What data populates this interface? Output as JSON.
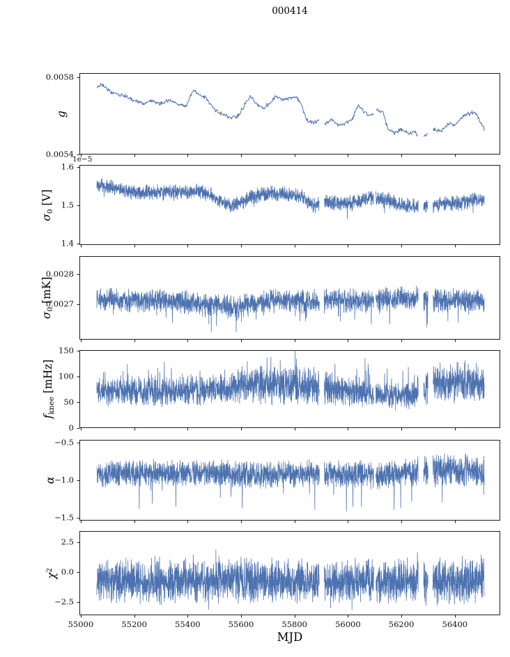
{
  "chart_data": {
    "type": "line",
    "title": "000414",
    "xlabel": "MJD",
    "xlim": [
      54995,
      56570
    ],
    "xticks": {
      "values": [
        55000,
        55200,
        55400,
        55600,
        55800,
        56000,
        56200,
        56400
      ],
      "labels": [
        "55000",
        "55200",
        "55400",
        "55600",
        "55800",
        "56000",
        "56200",
        "56400"
      ]
    },
    "x_data_range": [
      55060,
      56510
    ],
    "gaps": [
      [
        55893,
        55911
      ],
      [
        56097,
        56104
      ],
      [
        56263,
        56283
      ],
      [
        56300,
        56318
      ]
    ],
    "line_color": "#4c72b0",
    "axis_color": "#1a1a1a",
    "legend": "none",
    "grid": false,
    "panels": [
      {
        "id": "g",
        "ylabel": [
          {
            "t": "g",
            "style": "italic"
          }
        ],
        "ylim": [
          0.0054,
          0.00582
        ],
        "yticks": {
          "values": [
            0.0054,
            0.0058
          ],
          "labels": [
            "0.0054",
            "0.0058"
          ]
        },
        "trend": [
          [
            55060,
            0.00575
          ],
          [
            55085,
            0.00576
          ],
          [
            55110,
            0.00572
          ],
          [
            55140,
            0.00571
          ],
          [
            55170,
            0.0057
          ],
          [
            55200,
            0.00568
          ],
          [
            55235,
            0.00566
          ],
          [
            55265,
            0.00568
          ],
          [
            55295,
            0.00566
          ],
          [
            55330,
            0.00568
          ],
          [
            55365,
            0.00566
          ],
          [
            55395,
            0.00565
          ],
          [
            55420,
            0.00573
          ],
          [
            55445,
            0.00571
          ],
          [
            55470,
            0.00569
          ],
          [
            55500,
            0.00563
          ],
          [
            55530,
            0.00561
          ],
          [
            55560,
            0.00559
          ],
          [
            55590,
            0.0056
          ],
          [
            55615,
            0.00566
          ],
          [
            55635,
            0.0057
          ],
          [
            55660,
            0.00566
          ],
          [
            55685,
            0.00564
          ],
          [
            55710,
            0.00567
          ],
          [
            55730,
            0.0057
          ],
          [
            55755,
            0.00568
          ],
          [
            55780,
            0.00569
          ],
          [
            55805,
            0.0057
          ],
          [
            55825,
            0.00566
          ],
          [
            55845,
            0.00558
          ],
          [
            55870,
            0.00556
          ],
          [
            55895,
            0.00558
          ],
          [
            55915,
            0.00556
          ],
          [
            55940,
            0.00558
          ],
          [
            55965,
            0.00555
          ],
          [
            55990,
            0.00556
          ],
          [
            56015,
            0.00558
          ],
          [
            56040,
            0.00566
          ],
          [
            56060,
            0.00562
          ],
          [
            56085,
            0.0056
          ],
          [
            56110,
            0.00563
          ],
          [
            56130,
            0.00562
          ],
          [
            56150,
            0.00553
          ],
          [
            56175,
            0.00551
          ],
          [
            56200,
            0.00553
          ],
          [
            56225,
            0.00551
          ],
          [
            56250,
            0.00552
          ],
          [
            56275,
            0.00548
          ],
          [
            56300,
            0.00551
          ],
          [
            56325,
            0.00553
          ],
          [
            56350,
            0.00552
          ],
          [
            56375,
            0.00556
          ],
          [
            56400,
            0.00555
          ],
          [
            56425,
            0.00559
          ],
          [
            56450,
            0.00561
          ],
          [
            56475,
            0.00562
          ],
          [
            56495,
            0.00557
          ],
          [
            56510,
            0.00553
          ]
        ],
        "noise": {
          "seed": 11,
          "amp": 1.2e-05,
          "spike_p": 0,
          "spike_amp": [
            0,
            0
          ],
          "spike_dir": 0
        },
        "clip": [
          0.00542,
          0.00581
        ],
        "n_points": 700,
        "line_width": 1.0
      },
      {
        "id": "sigma0_V",
        "ylabel": [
          {
            "t": "σ",
            "style": "italic"
          },
          {
            "t": "0",
            "style": "sub"
          },
          {
            "t": " [V]",
            "style": "normal"
          }
        ],
        "offset_text": "1e−5",
        "unit_scale": "1e-5",
        "ylim": [
          1.396,
          1.605
        ],
        "yticks": {
          "values": [
            1.4,
            1.5,
            1.6
          ],
          "labels": [
            "1.4",
            "1.5",
            "1.6"
          ]
        },
        "trend": [
          [
            55060,
            1.55
          ],
          [
            55110,
            1.548
          ],
          [
            55160,
            1.54
          ],
          [
            55210,
            1.532
          ],
          [
            55260,
            1.534
          ],
          [
            55310,
            1.532
          ],
          [
            55360,
            1.534
          ],
          [
            55410,
            1.532
          ],
          [
            55450,
            1.536
          ],
          [
            55490,
            1.525
          ],
          [
            55530,
            1.507
          ],
          [
            55565,
            1.5
          ],
          [
            55600,
            1.508
          ],
          [
            55640,
            1.522
          ],
          [
            55690,
            1.53
          ],
          [
            55740,
            1.532
          ],
          [
            55790,
            1.528
          ],
          [
            55830,
            1.522
          ],
          [
            55865,
            1.503
          ],
          [
            55885,
            1.498
          ],
          [
            55905,
            1.512
          ],
          [
            55945,
            1.506
          ],
          [
            55985,
            1.505
          ],
          [
            56025,
            1.507
          ],
          [
            56065,
            1.516
          ],
          [
            56105,
            1.52
          ],
          [
            56145,
            1.514
          ],
          [
            56185,
            1.502
          ],
          [
            56225,
            1.498
          ],
          [
            56265,
            1.5
          ],
          [
            56305,
            1.5
          ],
          [
            56345,
            1.501
          ],
          [
            56385,
            1.503
          ],
          [
            56425,
            1.506
          ],
          [
            56465,
            1.512
          ],
          [
            56510,
            1.512
          ]
        ],
        "noise": {
          "seed": 22,
          "amp": 0.022,
          "spike_p": 0.01,
          "spike_amp": [
            0.01,
            0.03
          ],
          "spike_dir": -1
        },
        "clip": [
          1.43,
          1.59
        ],
        "n_points": 2400,
        "line_width": 0.8
      },
      {
        "id": "sigma0_mK",
        "ylabel": [
          {
            "t": "σ",
            "style": "italic"
          },
          {
            "t": "0",
            "style": "sub"
          },
          {
            "t": " [mK]",
            "style": "normal"
          }
        ],
        "ylim": [
          0.00258,
          0.00286
        ],
        "yticks": {
          "values": [
            0.0027,
            0.0028
          ],
          "labels": [
            "0.0027",
            "0.0028"
          ]
        },
        "trend": [
          [
            55060,
            0.002712
          ],
          [
            55200,
            0.002712
          ],
          [
            55350,
            0.00271
          ],
          [
            55430,
            0.002705
          ],
          [
            55520,
            0.002695
          ],
          [
            55580,
            0.002685
          ],
          [
            55610,
            0.002692
          ],
          [
            55660,
            0.002705
          ],
          [
            55720,
            0.002712
          ],
          [
            55800,
            0.00271
          ],
          [
            55860,
            0.002705
          ],
          [
            55920,
            0.002712
          ],
          [
            56000,
            0.002712
          ],
          [
            56080,
            0.00271
          ],
          [
            56160,
            0.002715
          ],
          [
            56240,
            0.002718
          ],
          [
            56320,
            0.002712
          ],
          [
            56400,
            0.002712
          ],
          [
            56510,
            0.00271
          ]
        ],
        "noise": {
          "seed": 33,
          "amp": 4.5e-05,
          "spike_p": 0.02,
          "spike_amp": [
            2e-05,
            7e-05
          ],
          "spike_dir": -1
        },
        "clip": [
          0.002605,
          0.002795
        ],
        "n_points": 2400,
        "line_width": 0.8
      },
      {
        "id": "f_knee",
        "ylabel": [
          {
            "t": "f",
            "style": "italic"
          },
          {
            "t": "knee",
            "style": "sub"
          },
          {
            "t": " [mHz]",
            "style": "normal"
          }
        ],
        "ylim": [
          0,
          151.5
        ],
        "yticks": {
          "values": [
            0,
            50,
            100,
            150
          ],
          "labels": [
            "0",
            "50",
            "100",
            "150"
          ]
        },
        "trend": [
          [
            55060,
            72
          ],
          [
            55300,
            70
          ],
          [
            55550,
            75
          ],
          [
            55650,
            85
          ],
          [
            55900,
            80
          ],
          [
            56000,
            70
          ],
          [
            56100,
            64
          ],
          [
            56200,
            62
          ],
          [
            56270,
            68
          ],
          [
            56330,
            90
          ],
          [
            56450,
            88
          ],
          [
            56510,
            84
          ]
        ],
        "noise": {
          "seed": 44,
          "amp": 38,
          "amp_points": [
            [
              55060,
              30
            ],
            [
              55550,
              32
            ],
            [
              55620,
              42
            ],
            [
              55900,
              40
            ],
            [
              56000,
              32
            ],
            [
              56100,
              26
            ],
            [
              56250,
              30
            ],
            [
              56320,
              46
            ],
            [
              56510,
              44
            ]
          ],
          "spike_p": 0.06,
          "spike_amp": [
            5,
            45
          ],
          "spike_dir": 1
        },
        "clip": [
          14,
          150
        ],
        "n_points": 2400,
        "line_width": 0.8
      },
      {
        "id": "alpha",
        "ylabel": [
          {
            "t": "α",
            "style": "italic"
          }
        ],
        "ylim": [
          -1.537,
          -0.463
        ],
        "yticks": {
          "values": [
            -1.5,
            -1.0,
            -0.5
          ],
          "labels": [
            "−1.5",
            "−1.0",
            "−0.5"
          ]
        },
        "trend": [
          [
            55060,
            -0.92
          ],
          [
            55300,
            -0.9
          ],
          [
            55500,
            -0.91
          ],
          [
            55700,
            -0.92
          ],
          [
            55900,
            -0.9
          ],
          [
            56000,
            -0.92
          ],
          [
            56100,
            -0.93
          ],
          [
            56200,
            -0.9
          ],
          [
            56320,
            -0.88
          ],
          [
            56510,
            -0.87
          ]
        ],
        "noise": {
          "seed": 55,
          "amp": 0.2,
          "amp_points": [
            [
              55060,
              0.2
            ],
            [
              56250,
              0.2
            ],
            [
              56320,
              0.24
            ],
            [
              56510,
              0.24
            ]
          ],
          "spike_p": 0.012,
          "spike_amp": [
            0.1,
            0.5
          ],
          "spike_dir": -1
        },
        "clip": [
          -1.5,
          -0.52
        ],
        "n_points": 2400,
        "line_width": 0.8
      },
      {
        "id": "chi2",
        "ylabel": [
          {
            "t": "χ",
            "style": "italic"
          },
          {
            "t": "2",
            "style": "sup"
          }
        ],
        "ylim": [
          -3.6,
          3.43
        ],
        "yticks": {
          "values": [
            -2.5,
            0.0,
            2.5
          ],
          "labels": [
            "−2.5",
            "0.0",
            "2.5"
          ]
        },
        "trend": [
          [
            55060,
            -0.75
          ],
          [
            55500,
            -0.75
          ],
          [
            56000,
            -0.8
          ],
          [
            56510,
            -0.7
          ]
        ],
        "noise": {
          "seed": 66,
          "amp": 2.05,
          "amp_points": [
            [
              55060,
              2.0
            ],
            [
              56250,
              2.0
            ],
            [
              56320,
              2.25
            ],
            [
              56510,
              2.2
            ]
          ],
          "spike_p": 0.025,
          "spike_amp": [
            0.3,
            1.2
          ],
          "spike_dir": 0
        },
        "clip": [
          -3.4,
          2.55
        ],
        "n_points": 2600,
        "line_width": 0.8
      }
    ]
  }
}
